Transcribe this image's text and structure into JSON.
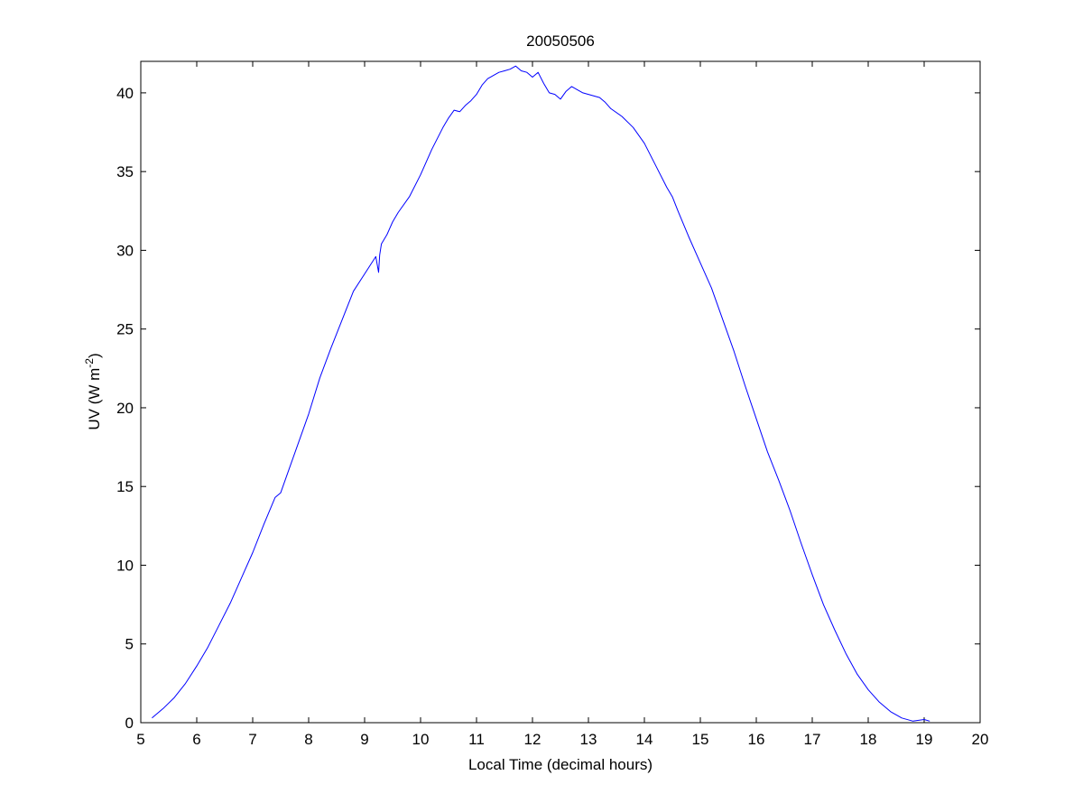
{
  "chart_data": {
    "type": "line",
    "title": "20050506",
    "xlabel": "Local Time (decimal hours)",
    "ylabel": {
      "base": "UV (W m",
      "superscript": "-2",
      "close": ")"
    },
    "xlim": [
      5,
      20
    ],
    "ylim": [
      0,
      42
    ],
    "xticks": [
      5,
      6,
      7,
      8,
      9,
      10,
      11,
      12,
      13,
      14,
      15,
      16,
      17,
      18,
      19,
      20
    ],
    "yticks": [
      0,
      5,
      10,
      15,
      20,
      25,
      30,
      35,
      40
    ],
    "grid": false,
    "series": [
      {
        "color": "#0000ff",
        "x": [
          5.2,
          5.4,
          5.6,
          5.8,
          6.0,
          6.2,
          6.4,
          6.6,
          6.8,
          7.0,
          7.2,
          7.4,
          7.5,
          7.6,
          7.8,
          8.0,
          8.2,
          8.4,
          8.6,
          8.8,
          9.0,
          9.2,
          9.25,
          9.27,
          9.3,
          9.4,
          9.5,
          9.6,
          9.8,
          10.0,
          10.2,
          10.4,
          10.5,
          10.6,
          10.7,
          10.8,
          10.9,
          11.0,
          11.1,
          11.2,
          11.3,
          11.4,
          11.5,
          11.6,
          11.7,
          11.8,
          11.9,
          12.0,
          12.1,
          12.2,
          12.3,
          12.4,
          12.5,
          12.6,
          12.7,
          12.8,
          12.9,
          13.0,
          13.1,
          13.2,
          13.3,
          13.4,
          13.6,
          13.8,
          14.0,
          14.2,
          14.4,
          14.5,
          14.6,
          14.8,
          15.0,
          15.2,
          15.4,
          15.6,
          15.8,
          16.0,
          16.2,
          16.4,
          16.6,
          16.8,
          17.0,
          17.2,
          17.4,
          17.6,
          17.8,
          18.0,
          18.2,
          18.4,
          18.6,
          18.8,
          19.0,
          19.1
        ],
        "y": [
          0.3,
          0.9,
          1.6,
          2.5,
          3.6,
          4.8,
          6.2,
          7.6,
          9.2,
          10.8,
          12.6,
          14.3,
          14.6,
          15.6,
          17.6,
          19.6,
          21.9,
          23.8,
          25.6,
          27.4,
          28.5,
          29.6,
          28.6,
          29.7,
          30.4,
          31.0,
          31.8,
          32.4,
          33.4,
          34.8,
          36.4,
          37.8,
          38.4,
          38.9,
          38.8,
          39.2,
          39.5,
          39.9,
          40.5,
          40.9,
          41.1,
          41.3,
          41.4,
          41.5,
          41.7,
          41.4,
          41.3,
          41.0,
          41.3,
          40.6,
          40.0,
          39.9,
          39.6,
          40.1,
          40.4,
          40.2,
          40.0,
          39.9,
          39.8,
          39.7,
          39.4,
          39.0,
          38.5,
          37.8,
          36.8,
          35.4,
          34.0,
          33.4,
          32.5,
          30.8,
          29.2,
          27.6,
          25.6,
          23.6,
          21.4,
          19.3,
          17.2,
          15.4,
          13.5,
          11.4,
          9.4,
          7.5,
          5.9,
          4.4,
          3.1,
          2.1,
          1.3,
          0.7,
          0.3,
          0.1,
          0.2,
          0.1
        ]
      }
    ]
  }
}
